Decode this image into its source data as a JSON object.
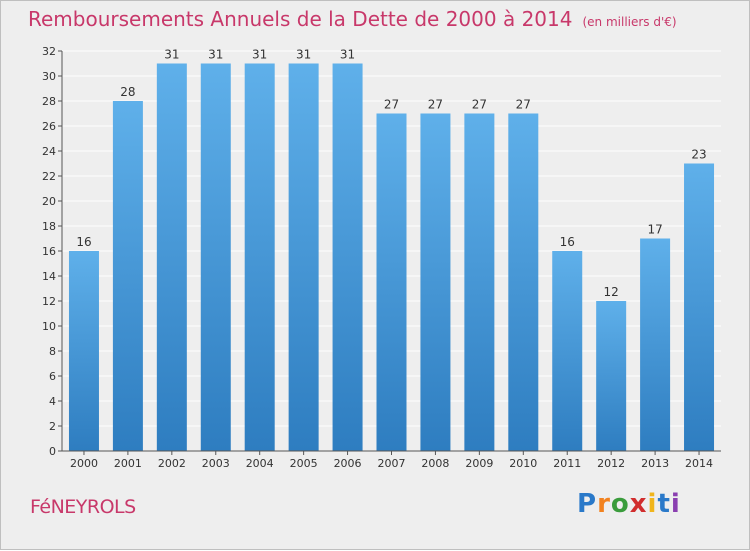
{
  "title": "Remboursements Annuels de la Dette de 2000 à 2014",
  "unit": "(en milliers d'€)",
  "commune": "FéNEYROLS",
  "logo": {
    "text": "Proxiti",
    "letter_colors": [
      "#2a79c9",
      "#f2821f",
      "#3a9c3c",
      "#d12d2d",
      "#f0b51c",
      "#2a79c9",
      "#8a3fb0"
    ]
  },
  "colors": {
    "title": "#c8386a",
    "bar_top": "#5fb0ea",
    "bar_bottom": "#2e7dc0",
    "grid": "#ffffff",
    "background": "#eeeeee"
  },
  "chart_data": {
    "type": "bar",
    "title": "Remboursements Annuels de la Dette de 2000 à 2014",
    "xlabel": "",
    "ylabel": "",
    "categories": [
      "2000",
      "2001",
      "2002",
      "2003",
      "2004",
      "2005",
      "2006",
      "2007",
      "2008",
      "2009",
      "2010",
      "2011",
      "2012",
      "2013",
      "2014"
    ],
    "values": [
      16,
      28,
      31,
      31,
      31,
      31,
      31,
      27,
      27,
      27,
      27,
      16,
      12,
      17,
      23
    ],
    "ylim": [
      0,
      32
    ],
    "yticks": [
      0,
      2,
      4,
      6,
      8,
      10,
      12,
      14,
      16,
      18,
      20,
      22,
      24,
      26,
      28,
      30,
      32
    ],
    "grid": true,
    "legend": "none"
  }
}
